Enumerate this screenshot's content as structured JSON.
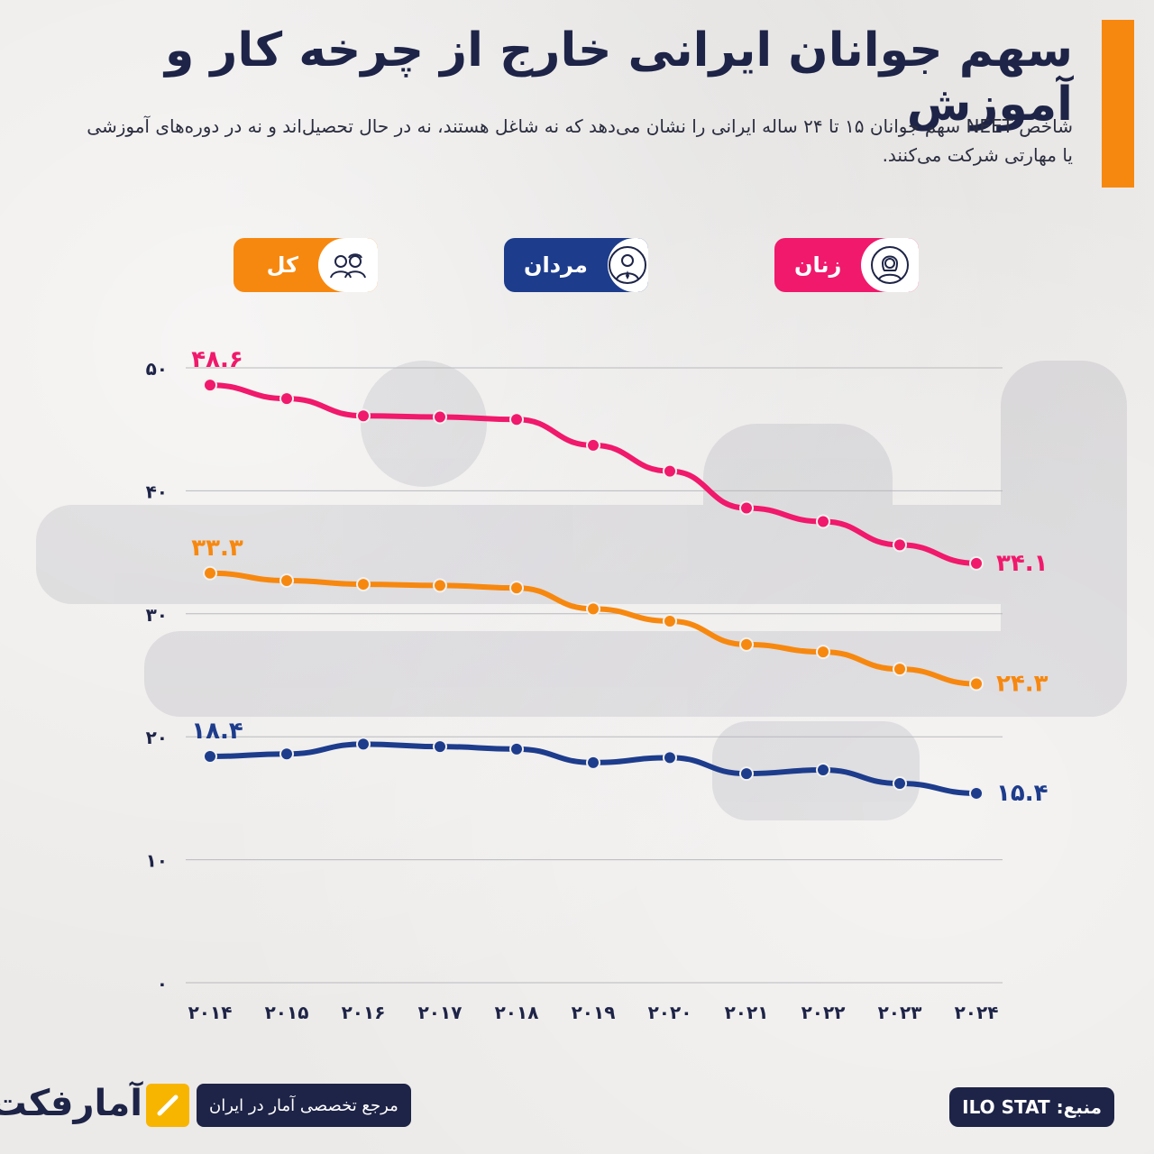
{
  "header": {
    "title": "سهم جوانان ایرانی خارج از چرخه کار و آموزش",
    "subtitle": "شاخص NEET سهم جوانان ۱۵ تا ۲۴ ساله ایرانی را نشان می‌دهد که نه شاغل هستند، نه در حال تحصیل‌اند و نه در دوره‌های آموزشی یا مهارتی شرکت می‌کنند."
  },
  "legend": {
    "women": "زنان",
    "men": "مردان",
    "total": "کل"
  },
  "colors": {
    "women": "#f0196b",
    "men": "#1d3c8c",
    "total": "#f7880f",
    "accent": "#f7880f",
    "navy": "#1e2447"
  },
  "chart_data": {
    "type": "line",
    "x": [
      "۲۰۱۴",
      "۲۰۱۵",
      "۲۰۱۶",
      "۲۰۱۷",
      "۲۰۱۸",
      "۲۰۱۹",
      "۲۰۲۰",
      "۲۰۲۱",
      "۲۰۲۲",
      "۲۰۲۳",
      "۲۰۲۴"
    ],
    "ylim": [
      0,
      50
    ],
    "yticks": [
      0,
      10,
      20,
      30,
      40,
      50
    ],
    "ytick_labels": [
      "۰",
      "۱۰",
      "۲۰",
      "۳۰",
      "۴۰",
      "۵۰"
    ],
    "grid": true,
    "series": [
      {
        "name": "زنان",
        "color": "#f0196b",
        "values": [
          48.6,
          47.5,
          46.1,
          46.0,
          45.8,
          43.7,
          41.6,
          38.6,
          37.5,
          35.6,
          34.1
        ],
        "start_label": "۴۸.۶",
        "end_label": "۳۴.۱"
      },
      {
        "name": "کل",
        "color": "#f7880f",
        "values": [
          33.3,
          32.7,
          32.4,
          32.3,
          32.1,
          30.4,
          29.4,
          27.5,
          26.9,
          25.5,
          24.3
        ],
        "start_label": "۳۳.۳",
        "end_label": "۲۴.۳"
      },
      {
        "name": "مردان",
        "color": "#1d3c8c",
        "values": [
          18.4,
          18.6,
          19.4,
          19.2,
          19.0,
          17.9,
          18.3,
          17.0,
          17.3,
          16.2,
          15.4
        ],
        "start_label": "۱۸.۴",
        "end_label": "۱۵.۴"
      }
    ]
  },
  "footer": {
    "source": "منبع: ILO STAT",
    "reference": "مرجع تخصصی آمار در ایران",
    "logo": "آمارفکت"
  }
}
